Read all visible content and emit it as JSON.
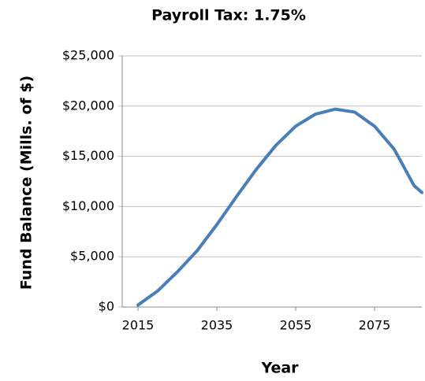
{
  "chart_data": {
    "type": "line",
    "title": "Payroll Tax: 1.75%",
    "x_label": "Year",
    "y_label": "Fund Balance (Mills. of $)",
    "x": [
      2015,
      2020,
      2025,
      2030,
      2035,
      2040,
      2045,
      2050,
      2055,
      2060,
      2065,
      2070,
      2075,
      2080,
      2085,
      2087
    ],
    "series": [
      {
        "name": "Fund Balance",
        "color": "#4a7ebb",
        "values": [
          200,
          1600,
          3500,
          5600,
          8200,
          11000,
          13700,
          16100,
          18000,
          19200,
          19700,
          19400,
          18000,
          15700,
          12100,
          11400
        ]
      }
    ],
    "xlim": [
      2011,
      2087
    ],
    "xticks": [
      2015,
      2035,
      2055,
      2075
    ],
    "ylim": [
      0,
      25000
    ],
    "yticks": [
      {
        "value": 0,
        "label": "$0"
      },
      {
        "value": 5000,
        "label": "$5,000"
      },
      {
        "value": 10000,
        "label": "$10,000"
      },
      {
        "value": 15000,
        "label": "$15,000"
      },
      {
        "value": 20000,
        "label": "$20,000"
      },
      {
        "value": 25000,
        "label": "$25,000"
      }
    ],
    "grid": true
  }
}
